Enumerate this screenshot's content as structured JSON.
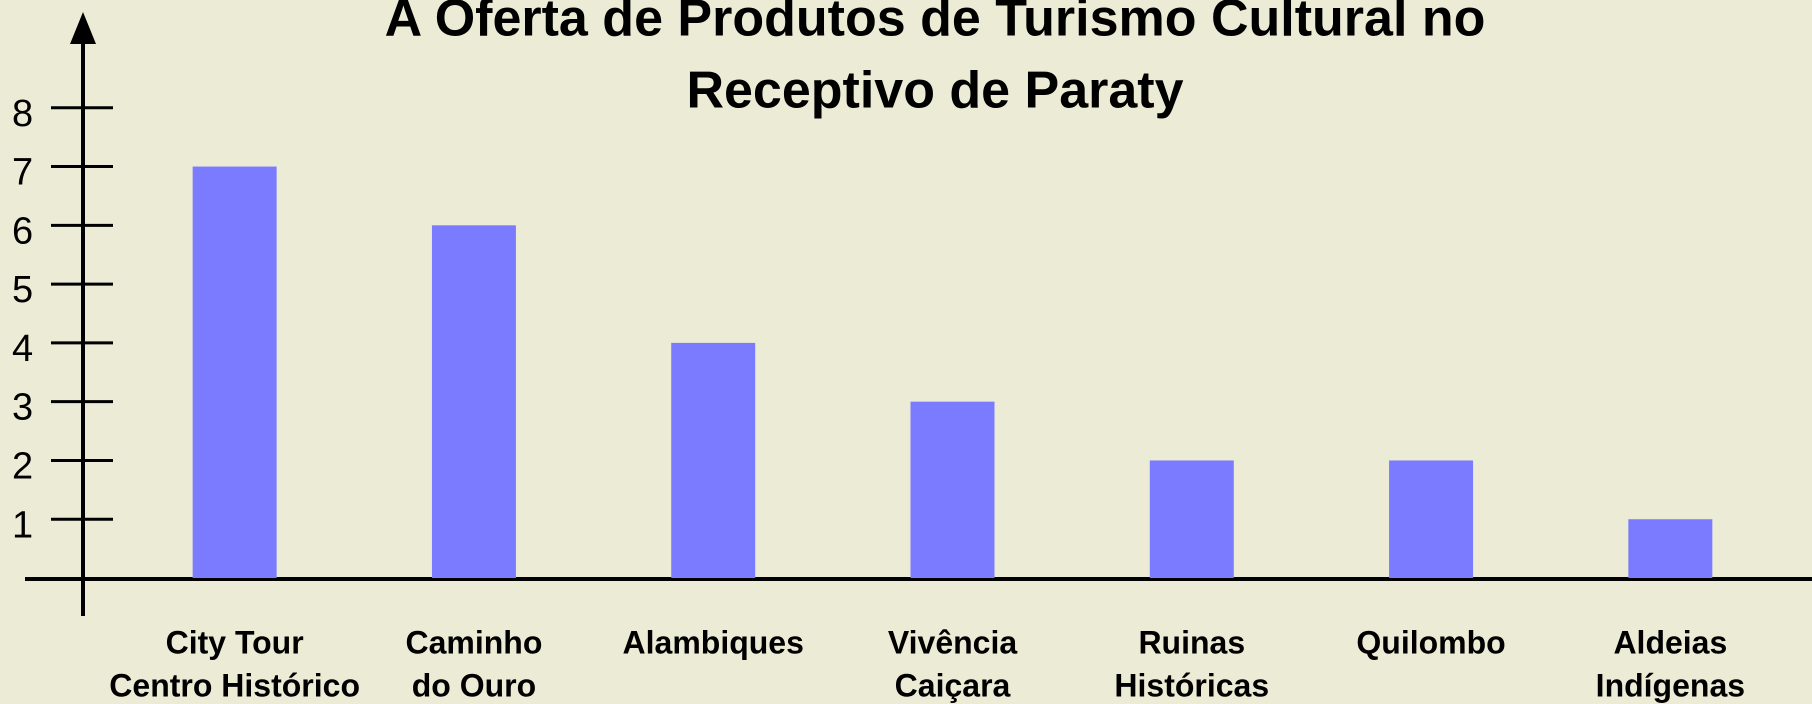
{
  "chart_data": {
    "type": "bar",
    "title": [
      "A Oferta de Produtos de Turismo Cultural no",
      "Receptivo de Paraty"
    ],
    "categories": [
      [
        "City Tour",
        "Centro Histórico"
      ],
      [
        "Caminho",
        "do Ouro"
      ],
      [
        "Alambiques"
      ],
      [
        "Vivência",
        "Caiçara"
      ],
      [
        "Ruinas",
        "Históricas"
      ],
      [
        "Quilombo"
      ],
      [
        "Aldeias",
        "Indígenas"
      ]
    ],
    "values": [
      7,
      6,
      4,
      3,
      2,
      2,
      1
    ],
    "color": "#7b7bff",
    "ylim": [
      0,
      9
    ],
    "yticks": [
      1,
      2,
      3,
      4,
      5,
      6,
      7,
      8
    ]
  }
}
